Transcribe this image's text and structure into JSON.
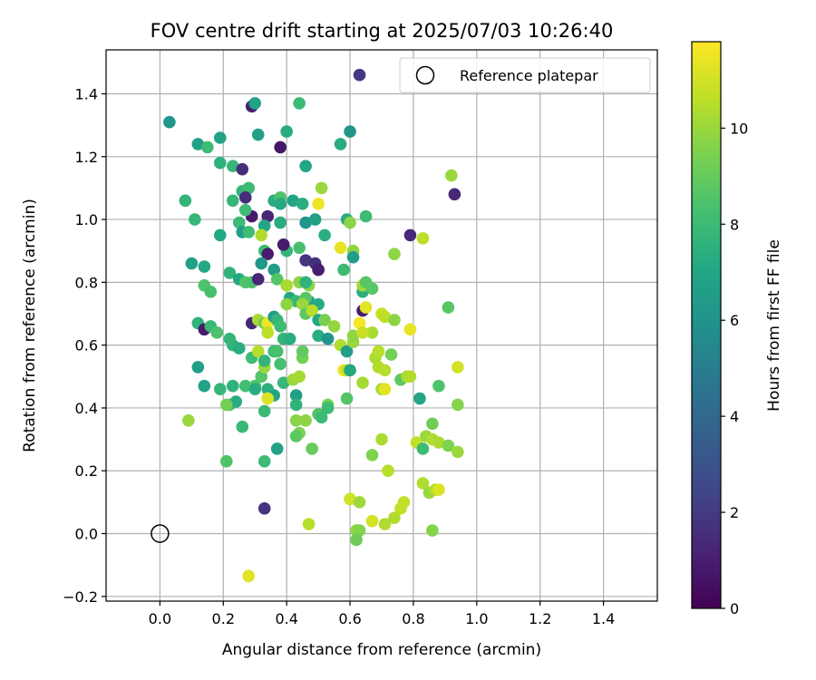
{
  "chart_data": {
    "type": "scatter",
    "title": "FOV centre drift starting at 2025/07/03 10:26:40",
    "xlabel": "Angular distance from reference (arcmin)",
    "ylabel": "Rotation from reference (arcmin)",
    "colorbar_label": "Hours from first FF file",
    "colormap": "viridis",
    "xlim": [
      -0.17,
      1.57
    ],
    "ylim": [
      -0.215,
      1.54
    ],
    "c_range": [
      0,
      11.8
    ],
    "xticks": [
      0.0,
      0.2,
      0.4,
      0.6,
      0.8,
      1.0,
      1.2,
      1.4
    ],
    "xtick_labels": [
      "0.0",
      "0.2",
      "0.4",
      "0.6",
      "0.8",
      "1.0",
      "1.2",
      "1.4"
    ],
    "yticks": [
      -0.2,
      0.0,
      0.2,
      0.4,
      0.6,
      0.8,
      1.0,
      1.2,
      1.4
    ],
    "ytick_labels": [
      "−0.2",
      "0.0",
      "0.2",
      "0.4",
      "0.6",
      "0.8",
      "1.0",
      "1.2",
      "1.4"
    ],
    "colorbar_ticks": [
      0,
      2,
      4,
      6,
      8,
      10
    ],
    "colorbar_tick_labels": [
      "0",
      "2",
      "4",
      "6",
      "8",
      "10"
    ],
    "grid": true,
    "legend": {
      "position": "top-right",
      "entries": [
        "Reference platepar"
      ]
    },
    "reference_point": {
      "x": 0.0,
      "y": 0.0
    },
    "points": [
      [
        0.03,
        1.31,
        6.2
      ],
      [
        0.12,
        1.24,
        6.6
      ],
      [
        0.15,
        1.23,
        8.0
      ],
      [
        0.19,
        1.26,
        6.8
      ],
      [
        0.29,
        1.36,
        1.0
      ],
      [
        0.3,
        1.37,
        6.8
      ],
      [
        0.63,
        1.46,
        2.0
      ],
      [
        0.44,
        1.37,
        8.0
      ],
      [
        0.4,
        1.28,
        7.3
      ],
      [
        0.6,
        1.28,
        6.2
      ],
      [
        0.57,
        1.24,
        7.3
      ],
      [
        0.31,
        1.27,
        6.7
      ],
      [
        0.38,
        1.23,
        0.7
      ],
      [
        0.19,
        1.18,
        7.5
      ],
      [
        0.23,
        1.17,
        7.8
      ],
      [
        0.26,
        1.16,
        1.5
      ],
      [
        0.46,
        1.17,
        7.0
      ],
      [
        0.92,
        1.14,
        10.0
      ],
      [
        0.93,
        1.08,
        1.3
      ],
      [
        0.08,
        1.06,
        7.7
      ],
      [
        0.23,
        1.06,
        7.8
      ],
      [
        0.26,
        1.09,
        7.7
      ],
      [
        0.28,
        1.1,
        8.0
      ],
      [
        0.27,
        1.07,
        1.5
      ],
      [
        0.36,
        1.06,
        7.3
      ],
      [
        0.38,
        1.07,
        8.5
      ],
      [
        0.42,
        1.06,
        6.9
      ],
      [
        0.45,
        1.05,
        7.4
      ],
      [
        0.51,
        1.1,
        10.0
      ],
      [
        0.5,
        1.05,
        11.5
      ],
      [
        0.29,
        1.01,
        0.8
      ],
      [
        0.34,
        1.01,
        1.2
      ],
      [
        0.38,
        1.05,
        7.2
      ],
      [
        0.27,
        1.03,
        8.0
      ],
      [
        0.25,
        0.99,
        8.0
      ],
      [
        0.11,
        1.0,
        7.8
      ],
      [
        0.33,
        0.98,
        6.9
      ],
      [
        0.38,
        0.99,
        7.3
      ],
      [
        0.46,
        0.99,
        6.1
      ],
      [
        0.49,
        1.0,
        6.7
      ],
      [
        0.59,
        1.0,
        7.3
      ],
      [
        0.6,
        0.99,
        9.7
      ],
      [
        0.65,
        1.01,
        8.0
      ],
      [
        0.26,
        0.96,
        6.5
      ],
      [
        0.28,
        0.96,
        8.1
      ],
      [
        0.19,
        0.95,
        7.1
      ],
      [
        0.32,
        0.95,
        10.4
      ],
      [
        0.52,
        0.95,
        7.4
      ],
      [
        0.79,
        0.95,
        1.4
      ],
      [
        0.83,
        0.94,
        10.6
      ],
      [
        0.33,
        0.9,
        8.1
      ],
      [
        0.34,
        0.89,
        0.9
      ],
      [
        0.4,
        0.9,
        7.7
      ],
      [
        0.39,
        0.92,
        0.9
      ],
      [
        0.44,
        0.91,
        8.3
      ],
      [
        0.57,
        0.91,
        11.4
      ],
      [
        0.61,
        0.9,
        9.8
      ],
      [
        0.74,
        0.89,
        9.8
      ],
      [
        0.32,
        0.86,
        6.2
      ],
      [
        0.1,
        0.86,
        6.6
      ],
      [
        0.14,
        0.85,
        7.1
      ],
      [
        0.46,
        0.87,
        1.8
      ],
      [
        0.49,
        0.86,
        1.6
      ],
      [
        0.5,
        0.84,
        1.2
      ],
      [
        0.5,
        0.84,
        1.0
      ],
      [
        0.58,
        0.84,
        8.0
      ],
      [
        0.61,
        0.88,
        6.5
      ],
      [
        0.22,
        0.83,
        7.6
      ],
      [
        0.25,
        0.81,
        7.1
      ],
      [
        0.27,
        0.8,
        8.5
      ],
      [
        0.29,
        0.8,
        8.4
      ],
      [
        0.31,
        0.81,
        1.2
      ],
      [
        0.36,
        0.84,
        6.5
      ],
      [
        0.37,
        0.81,
        8.6
      ],
      [
        0.4,
        0.79,
        10.3
      ],
      [
        0.44,
        0.8,
        9.8
      ],
      [
        0.47,
        0.79,
        9.7
      ],
      [
        0.46,
        0.8,
        7.6
      ],
      [
        0.64,
        0.77,
        7.4
      ],
      [
        0.64,
        0.79,
        10.2
      ],
      [
        0.65,
        0.8,
        8.7
      ],
      [
        0.67,
        0.78,
        8.7
      ],
      [
        0.14,
        0.79,
        8.5
      ],
      [
        0.16,
        0.77,
        8.3
      ],
      [
        0.41,
        0.75,
        7.1
      ],
      [
        0.43,
        0.74,
        7.9
      ],
      [
        0.47,
        0.74,
        6.6
      ],
      [
        0.46,
        0.75,
        8.7
      ],
      [
        0.5,
        0.73,
        7.2
      ],
      [
        0.4,
        0.73,
        9.8
      ],
      [
        0.45,
        0.73,
        10.0
      ],
      [
        0.64,
        0.71,
        0.9
      ],
      [
        0.65,
        0.72,
        11.3
      ],
      [
        0.7,
        0.7,
        10.8
      ],
      [
        0.91,
        0.72,
        8.7
      ],
      [
        0.12,
        0.67,
        7.6
      ],
      [
        0.14,
        0.65,
        0.9
      ],
      [
        0.16,
        0.66,
        7.9
      ],
      [
        0.18,
        0.64,
        8.4
      ],
      [
        0.29,
        0.67,
        1.3
      ],
      [
        0.31,
        0.68,
        10.2
      ],
      [
        0.33,
        0.67,
        9.2
      ],
      [
        0.34,
        0.67,
        11.5
      ],
      [
        0.36,
        0.69,
        6.6
      ],
      [
        0.37,
        0.68,
        7.7
      ],
      [
        0.38,
        0.66,
        8.0
      ],
      [
        0.46,
        0.7,
        8.8
      ],
      [
        0.48,
        0.71,
        10.5
      ],
      [
        0.5,
        0.68,
        7.1
      ],
      [
        0.52,
        0.68,
        9.4
      ],
      [
        0.55,
        0.66,
        9.9
      ],
      [
        0.63,
        0.67,
        11.7
      ],
      [
        0.67,
        0.64,
        10.3
      ],
      [
        0.71,
        0.69,
        10.6
      ],
      [
        0.74,
        0.68,
        9.8
      ],
      [
        0.79,
        0.65,
        11.4
      ],
      [
        0.22,
        0.62,
        7.7
      ],
      [
        0.23,
        0.6,
        7.7
      ],
      [
        0.25,
        0.59,
        7.4
      ],
      [
        0.29,
        0.56,
        8.1
      ],
      [
        0.31,
        0.58,
        10.5
      ],
      [
        0.34,
        0.64,
        10.6
      ],
      [
        0.36,
        0.58,
        8.0
      ],
      [
        0.37,
        0.58,
        8.3
      ],
      [
        0.39,
        0.62,
        7.7
      ],
      [
        0.41,
        0.62,
        7.4
      ],
      [
        0.5,
        0.63,
        7.4
      ],
      [
        0.53,
        0.62,
        6.1
      ],
      [
        0.57,
        0.6,
        10.4
      ],
      [
        0.59,
        0.58,
        6.5
      ],
      [
        0.61,
        0.61,
        10.0
      ],
      [
        0.61,
        0.63,
        9.8
      ],
      [
        0.64,
        0.64,
        10.8
      ],
      [
        0.68,
        0.56,
        10.3
      ],
      [
        0.69,
        0.58,
        10.5
      ],
      [
        0.73,
        0.57,
        9.3
      ],
      [
        0.12,
        0.53,
        6.6
      ],
      [
        0.14,
        0.47,
        6.8
      ],
      [
        0.19,
        0.46,
        7.8
      ],
      [
        0.23,
        0.47,
        7.6
      ],
      [
        0.22,
        0.41,
        8.2
      ],
      [
        0.24,
        0.42,
        7.3
      ],
      [
        0.27,
        0.47,
        8.2
      ],
      [
        0.3,
        0.47,
        8.5
      ],
      [
        0.3,
        0.46,
        7.3
      ],
      [
        0.32,
        0.5,
        8.6
      ],
      [
        0.33,
        0.53,
        10.0
      ],
      [
        0.33,
        0.55,
        7.7
      ],
      [
        0.34,
        0.46,
        7.5
      ],
      [
        0.36,
        0.44,
        7.0
      ],
      [
        0.38,
        0.54,
        8.3
      ],
      [
        0.39,
        0.48,
        7.8
      ],
      [
        0.42,
        0.49,
        10.0
      ],
      [
        0.43,
        0.44,
        6.6
      ],
      [
        0.43,
        0.41,
        7.6
      ],
      [
        0.44,
        0.5,
        10.2
      ],
      [
        0.45,
        0.56,
        9.3
      ],
      [
        0.45,
        0.58,
        8.9
      ],
      [
        0.58,
        0.52,
        11.5
      ],
      [
        0.59,
        0.52,
        10.7
      ],
      [
        0.6,
        0.52,
        7.1
      ],
      [
        0.64,
        0.48,
        10.2
      ],
      [
        0.69,
        0.53,
        10.4
      ],
      [
        0.71,
        0.52,
        10.5
      ],
      [
        0.7,
        0.46,
        10.3
      ],
      [
        0.71,
        0.46,
        11.3
      ],
      [
        0.76,
        0.49,
        8.8
      ],
      [
        0.78,
        0.5,
        10.3
      ],
      [
        0.79,
        0.5,
        10.4
      ],
      [
        0.82,
        0.43,
        7.0
      ],
      [
        0.88,
        0.47,
        8.5
      ],
      [
        0.94,
        0.53,
        11.0
      ],
      [
        0.94,
        0.41,
        9.6
      ],
      [
        0.09,
        0.36,
        10.0
      ],
      [
        0.21,
        0.41,
        9.3
      ],
      [
        0.26,
        0.34,
        7.9
      ],
      [
        0.33,
        0.39,
        8.0
      ],
      [
        0.34,
        0.43,
        11.2
      ],
      [
        0.43,
        0.36,
        9.7
      ],
      [
        0.46,
        0.36,
        9.8
      ],
      [
        0.44,
        0.32,
        9.5
      ],
      [
        0.43,
        0.31,
        8.8
      ],
      [
        0.48,
        0.27,
        9.0
      ],
      [
        0.5,
        0.38,
        8.5
      ],
      [
        0.51,
        0.37,
        8.0
      ],
      [
        0.53,
        0.41,
        9.4
      ],
      [
        0.53,
        0.4,
        8.0
      ],
      [
        0.59,
        0.43,
        8.6
      ],
      [
        0.81,
        0.29,
        10.7
      ],
      [
        0.83,
        0.27,
        8.0
      ],
      [
        0.84,
        0.31,
        10.0
      ],
      [
        0.86,
        0.35,
        9.2
      ],
      [
        0.86,
        0.3,
        10.4
      ],
      [
        0.88,
        0.29,
        10.3
      ],
      [
        0.91,
        0.28,
        9.5
      ],
      [
        0.94,
        0.26,
        10.0
      ],
      [
        0.67,
        0.25,
        9.5
      ],
      [
        0.7,
        0.3,
        10.3
      ],
      [
        0.21,
        0.23,
        8.5
      ],
      [
        0.33,
        0.23,
        8.0
      ],
      [
        0.37,
        0.27,
        6.7
      ],
      [
        0.72,
        0.2,
        10.5
      ],
      [
        0.83,
        0.16,
        10.4
      ],
      [
        0.85,
        0.13,
        10.0
      ],
      [
        0.87,
        0.14,
        10.5
      ],
      [
        0.88,
        0.14,
        11.2
      ],
      [
        0.6,
        0.11,
        9.3
      ],
      [
        0.6,
        0.11,
        11.0
      ],
      [
        0.63,
        0.1,
        10.1
      ],
      [
        0.76,
        0.08,
        10.7
      ],
      [
        0.77,
        0.1,
        10.7
      ],
      [
        0.47,
        0.03,
        10.5
      ],
      [
        0.62,
        0.01,
        9.8
      ],
      [
        0.63,
        0.01,
        9.6
      ],
      [
        0.67,
        0.04,
        11.0
      ],
      [
        0.71,
        0.03,
        10.4
      ],
      [
        0.74,
        0.05,
        10.4
      ],
      [
        0.86,
        0.01,
        9.6
      ],
      [
        0.62,
        -0.02,
        9.2
      ],
      [
        0.28,
        -0.135,
        11.3
      ],
      [
        0.33,
        0.08,
        1.8
      ]
    ]
  }
}
